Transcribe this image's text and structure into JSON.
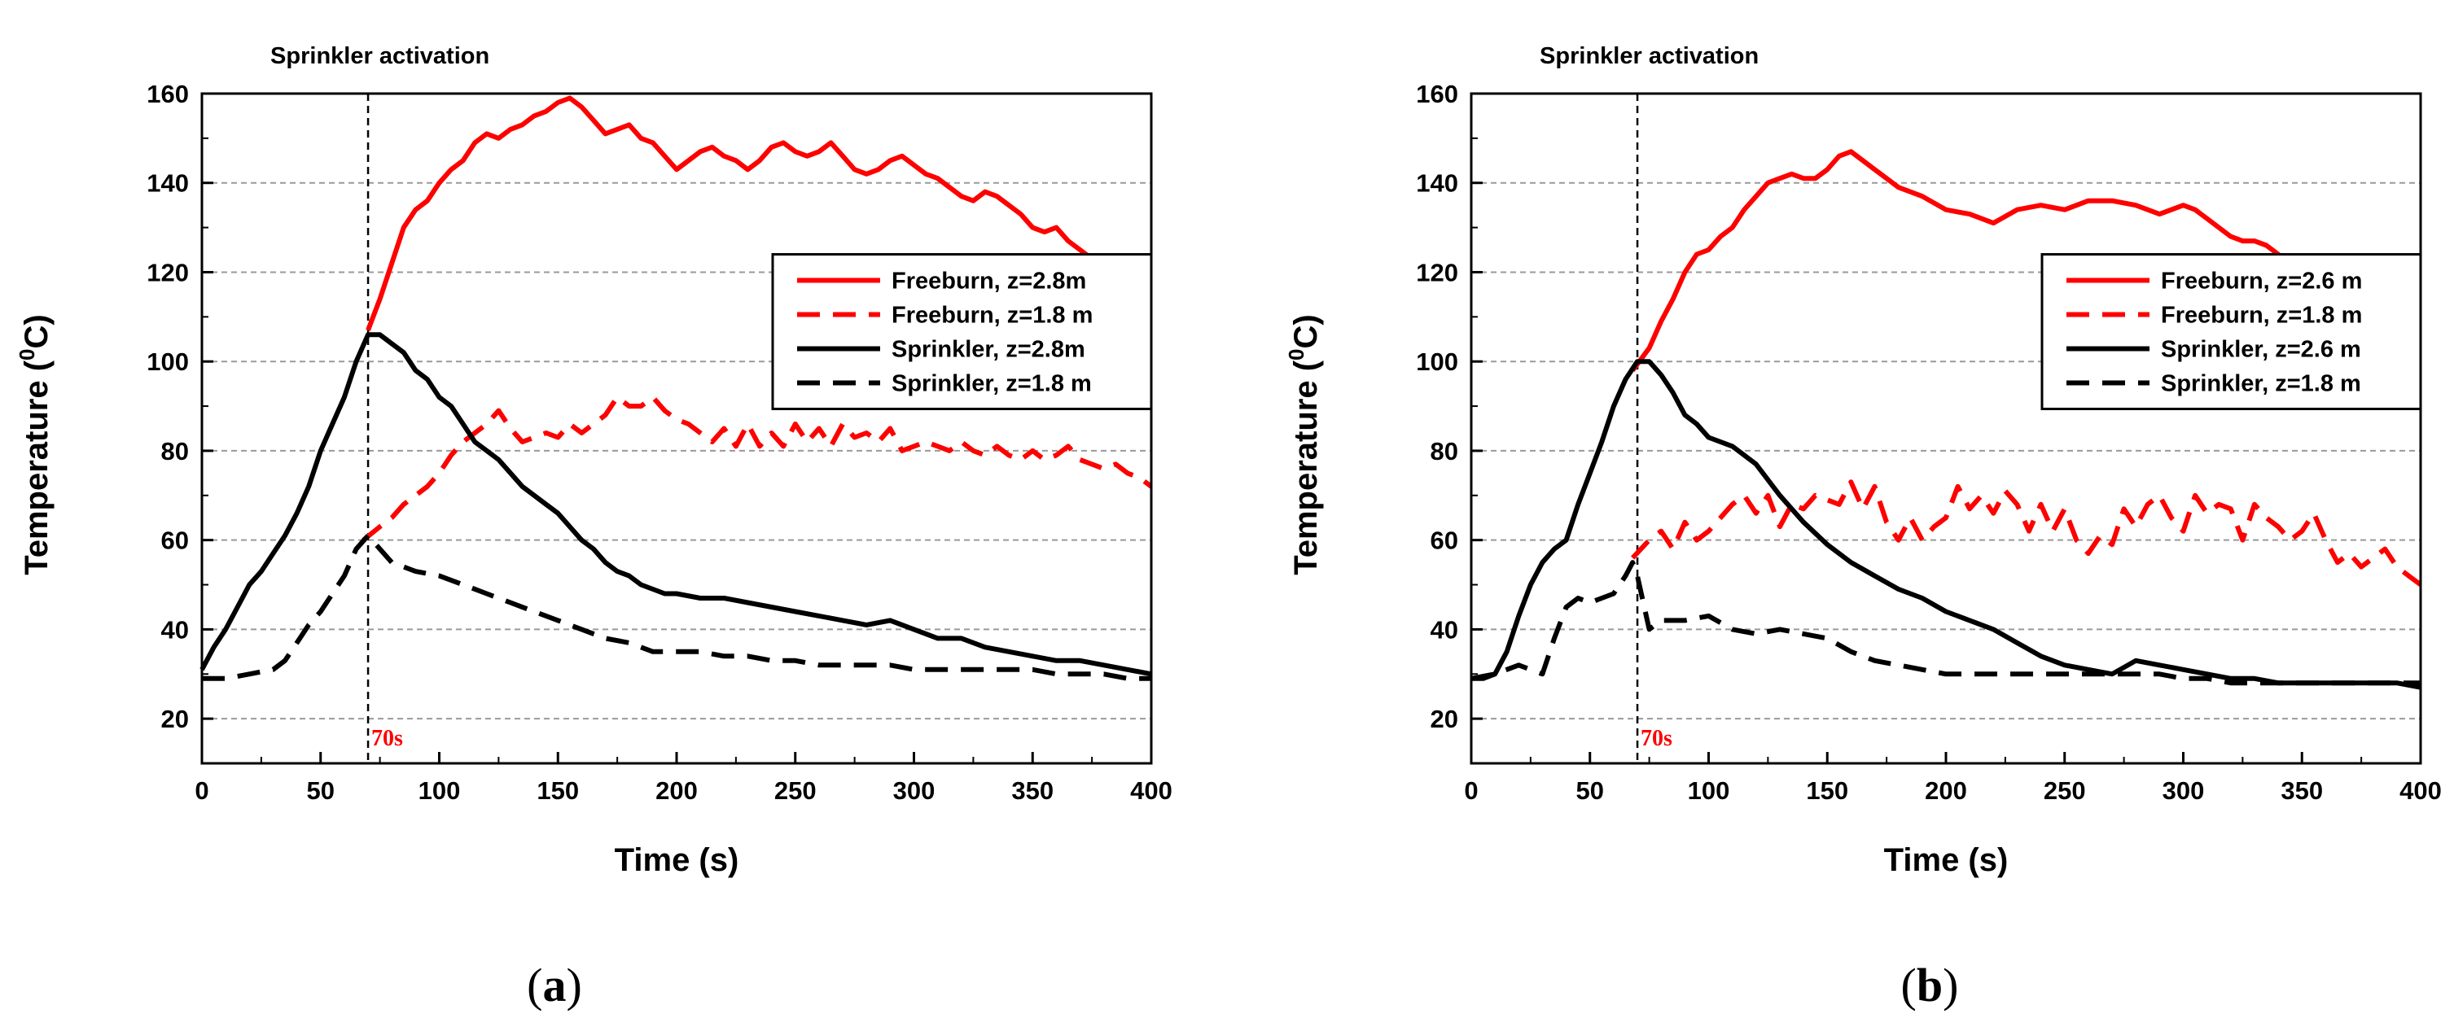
{
  "chart_data": [
    {
      "type": "line",
      "panel_label": "a",
      "xlabel": "Time (s)",
      "ylabel": "Temperature (0C)",
      "xlim": [
        0,
        400
      ],
      "ylim": [
        10,
        160
      ],
      "xticks": [
        0,
        50,
        100,
        150,
        200,
        250,
        300,
        350,
        400
      ],
      "yticks": [
        20,
        40,
        60,
        80,
        100,
        120,
        140,
        160
      ],
      "grid": "horizontal-dashed",
      "legend_position": "right",
      "annotations": {
        "top_text": "Sprinkler activation",
        "marker_label": "70s",
        "marker_x": 70
      },
      "colors": {
        "freeburn": "#ff0000",
        "sprinkler": "#000000"
      },
      "series": [
        {
          "name": "Freeburn, z=2.8m",
          "color": "#ff0000",
          "dash": "solid",
          "x": [
            70,
            75,
            80,
            85,
            90,
            95,
            100,
            105,
            110,
            115,
            120,
            125,
            130,
            135,
            140,
            145,
            150,
            155,
            160,
            165,
            170,
            175,
            180,
            185,
            190,
            195,
            200,
            205,
            210,
            215,
            220,
            225,
            230,
            235,
            240,
            245,
            250,
            255,
            260,
            265,
            270,
            275,
            280,
            285,
            290,
            295,
            300,
            305,
            310,
            315,
            320,
            325,
            330,
            335,
            340,
            345,
            350,
            355,
            360,
            365,
            370,
            375,
            380,
            385,
            390,
            395,
            400
          ],
          "y": [
            107,
            114,
            122,
            130,
            134,
            136,
            140,
            143,
            145,
            149,
            151,
            150,
            152,
            153,
            155,
            156,
            158,
            159,
            157,
            154,
            151,
            152,
            153,
            150,
            149,
            146,
            143,
            145,
            147,
            148,
            146,
            145,
            143,
            145,
            148,
            149,
            147,
            146,
            147,
            149,
            146,
            143,
            142,
            143,
            145,
            146,
            144,
            142,
            141,
            139,
            137,
            136,
            138,
            137,
            135,
            133,
            130,
            129,
            130,
            127,
            125,
            123,
            121,
            120,
            119,
            118,
            117
          ]
        },
        {
          "name": "Freeburn, z=1.8 m",
          "color": "#ff0000",
          "dash": "dashed",
          "x": [
            68,
            75,
            80,
            85,
            90,
            95,
            100,
            105,
            110,
            115,
            120,
            125,
            130,
            135,
            140,
            145,
            150,
            155,
            160,
            165,
            170,
            175,
            180,
            185,
            190,
            195,
            200,
            205,
            210,
            215,
            220,
            225,
            230,
            235,
            240,
            245,
            250,
            255,
            260,
            265,
            270,
            275,
            280,
            285,
            290,
            295,
            300,
            305,
            310,
            315,
            320,
            325,
            330,
            335,
            340,
            345,
            350,
            355,
            360,
            365,
            370,
            375,
            380,
            385,
            390,
            395,
            400
          ],
          "y": [
            60,
            63,
            65,
            68,
            70,
            72,
            75,
            79,
            82,
            84,
            86,
            89,
            85,
            82,
            83,
            84,
            83,
            86,
            84,
            86,
            88,
            92,
            90,
            90,
            92,
            89,
            87,
            86,
            84,
            82,
            85,
            81,
            86,
            81,
            84,
            81,
            86,
            82,
            85,
            81,
            86,
            83,
            84,
            82,
            85,
            80,
            81,
            82,
            81,
            80,
            82,
            80,
            79,
            81,
            79,
            78,
            80,
            78,
            79,
            81,
            78,
            77,
            76,
            77,
            75,
            74,
            72
          ]
        },
        {
          "name": "Sprinkler, z=2.8m",
          "color": "#000000",
          "dash": "solid",
          "x": [
            0,
            5,
            10,
            15,
            20,
            25,
            30,
            35,
            40,
            45,
            50,
            55,
            60,
            65,
            70,
            75,
            80,
            85,
            90,
            95,
            100,
            105,
            110,
            115,
            120,
            125,
            130,
            135,
            140,
            145,
            150,
            155,
            160,
            165,
            170,
            175,
            180,
            185,
            190,
            195,
            200,
            210,
            220,
            230,
            240,
            250,
            260,
            270,
            280,
            290,
            300,
            310,
            320,
            330,
            340,
            350,
            360,
            370,
            380,
            390,
            400
          ],
          "y": [
            31,
            36,
            40,
            45,
            50,
            53,
            57,
            61,
            66,
            72,
            80,
            86,
            92,
            100,
            106,
            106,
            104,
            102,
            98,
            96,
            92,
            90,
            86,
            82,
            80,
            78,
            75,
            72,
            70,
            68,
            66,
            63,
            60,
            58,
            55,
            53,
            52,
            50,
            49,
            48,
            48,
            47,
            47,
            46,
            45,
            44,
            43,
            42,
            41,
            42,
            40,
            38,
            38,
            36,
            35,
            34,
            33,
            33,
            32,
            31,
            30
          ]
        },
        {
          "name": "Sprinkler, z=1.8 m",
          "color": "#000000",
          "dash": "dashed",
          "x": [
            0,
            10,
            20,
            30,
            35,
            40,
            45,
            50,
            55,
            60,
            65,
            70,
            75,
            80,
            90,
            100,
            110,
            120,
            130,
            140,
            150,
            160,
            170,
            180,
            190,
            200,
            210,
            220,
            230,
            240,
            250,
            260,
            270,
            280,
            290,
            300,
            310,
            320,
            330,
            340,
            350,
            360,
            370,
            380,
            390,
            400
          ],
          "y": [
            29,
            29,
            30,
            31,
            33,
            37,
            41,
            44,
            48,
            52,
            58,
            61,
            58,
            55,
            53,
            52,
            50,
            48,
            46,
            44,
            42,
            40,
            38,
            37,
            35,
            35,
            35,
            34,
            34,
            33,
            33,
            32,
            32,
            32,
            32,
            31,
            31,
            31,
            31,
            31,
            31,
            30,
            30,
            30,
            29,
            29
          ]
        }
      ]
    },
    {
      "type": "line",
      "panel_label": "b",
      "xlabel": "Time (s)",
      "ylabel": "Temperature (0C)",
      "xlim": [
        0,
        400
      ],
      "ylim": [
        10,
        160
      ],
      "xticks": [
        0,
        50,
        100,
        150,
        200,
        250,
        300,
        350,
        400
      ],
      "yticks": [
        20,
        40,
        60,
        80,
        100,
        120,
        140,
        160
      ],
      "grid": "horizontal-dashed",
      "legend_position": "right",
      "annotations": {
        "top_text": "Sprinkler activation",
        "marker_label": "70s",
        "marker_x": 70
      },
      "colors": {
        "freeburn": "#ff0000",
        "sprinkler": "#000000"
      },
      "series": [
        {
          "name": "Freeburn, z=2.6 m",
          "color": "#ff0000",
          "dash": "solid",
          "x": [
            68,
            75,
            80,
            85,
            90,
            95,
            100,
            105,
            110,
            115,
            120,
            125,
            130,
            135,
            140,
            145,
            150,
            155,
            160,
            165,
            170,
            175,
            180,
            190,
            200,
            210,
            220,
            230,
            240,
            250,
            260,
            270,
            280,
            290,
            300,
            305,
            310,
            315,
            320,
            325,
            330,
            335,
            340,
            345,
            350,
            355,
            360,
            370,
            380,
            390,
            400
          ],
          "y": [
            98,
            103,
            109,
            114,
            120,
            124,
            125,
            128,
            130,
            134,
            137,
            140,
            141,
            142,
            141,
            141,
            143,
            146,
            147,
            145,
            143,
            141,
            139,
            137,
            134,
            133,
            131,
            134,
            135,
            134,
            136,
            136,
            135,
            133,
            135,
            134,
            132,
            130,
            128,
            127,
            127,
            126,
            124,
            121,
            119,
            120,
            118,
            116,
            114,
            111,
            108
          ]
        },
        {
          "name": "Freeburn, z=1.8 m",
          "color": "#ff0000",
          "dash": "dashed",
          "x": [
            68,
            75,
            80,
            85,
            90,
            95,
            100,
            105,
            110,
            115,
            120,
            125,
            130,
            135,
            140,
            145,
            150,
            155,
            160,
            165,
            170,
            175,
            180,
            185,
            190,
            195,
            200,
            205,
            210,
            215,
            220,
            225,
            230,
            235,
            240,
            245,
            250,
            255,
            260,
            265,
            270,
            275,
            280,
            285,
            290,
            295,
            300,
            305,
            310,
            315,
            320,
            325,
            330,
            335,
            340,
            345,
            350,
            355,
            360,
            365,
            370,
            375,
            380,
            385,
            390,
            395,
            400
          ],
          "y": [
            56,
            60,
            62,
            58,
            64,
            60,
            62,
            65,
            68,
            70,
            66,
            70,
            63,
            68,
            67,
            70,
            69,
            68,
            73,
            67,
            72,
            64,
            60,
            65,
            60,
            63,
            65,
            72,
            67,
            70,
            66,
            71,
            68,
            62,
            68,
            62,
            67,
            60,
            57,
            61,
            59,
            67,
            63,
            68,
            70,
            65,
            62,
            70,
            66,
            68,
            67,
            60,
            68,
            65,
            63,
            60,
            62,
            66,
            60,
            55,
            57,
            54,
            56,
            58,
            54,
            52,
            50
          ]
        },
        {
          "name": "Sprinkler, z=2.6 m",
          "color": "#000000",
          "dash": "solid",
          "x": [
            0,
            5,
            10,
            15,
            20,
            25,
            30,
            35,
            40,
            45,
            50,
            55,
            60,
            65,
            70,
            75,
            80,
            85,
            90,
            95,
            100,
            110,
            120,
            130,
            140,
            150,
            160,
            170,
            180,
            190,
            200,
            210,
            220,
            230,
            240,
            250,
            260,
            270,
            280,
            290,
            300,
            310,
            320,
            330,
            340,
            350,
            360,
            370,
            380,
            390,
            400
          ],
          "y": [
            29,
            29,
            30,
            35,
            43,
            50,
            55,
            58,
            60,
            68,
            75,
            82,
            90,
            96,
            100,
            100,
            97,
            93,
            88,
            86,
            83,
            81,
            77,
            70,
            64,
            59,
            55,
            52,
            49,
            47,
            44,
            42,
            40,
            37,
            34,
            32,
            31,
            30,
            33,
            32,
            31,
            30,
            29,
            29,
            28,
            28,
            28,
            28,
            28,
            28,
            27
          ]
        },
        {
          "name": "Sprinkler, z=1.8 m",
          "color": "#000000",
          "dash": "dashed",
          "x": [
            0,
            10,
            20,
            30,
            35,
            40,
            45,
            50,
            55,
            60,
            65,
            68,
            70,
            75,
            80,
            90,
            100,
            110,
            120,
            130,
            140,
            150,
            160,
            170,
            180,
            190,
            200,
            210,
            220,
            230,
            240,
            250,
            260,
            270,
            280,
            290,
            300,
            310,
            320,
            330,
            340,
            350,
            360,
            370,
            380,
            390,
            400
          ],
          "y": [
            29,
            30,
            32,
            30,
            38,
            45,
            47,
            46,
            47,
            48,
            52,
            55,
            52,
            40,
            42,
            42,
            43,
            40,
            39,
            40,
            39,
            38,
            35,
            33,
            32,
            31,
            30,
            30,
            30,
            30,
            30,
            30,
            30,
            30,
            30,
            30,
            29,
            29,
            28,
            28,
            28,
            28,
            28,
            28,
            28,
            28,
            28
          ]
        }
      ]
    }
  ]
}
